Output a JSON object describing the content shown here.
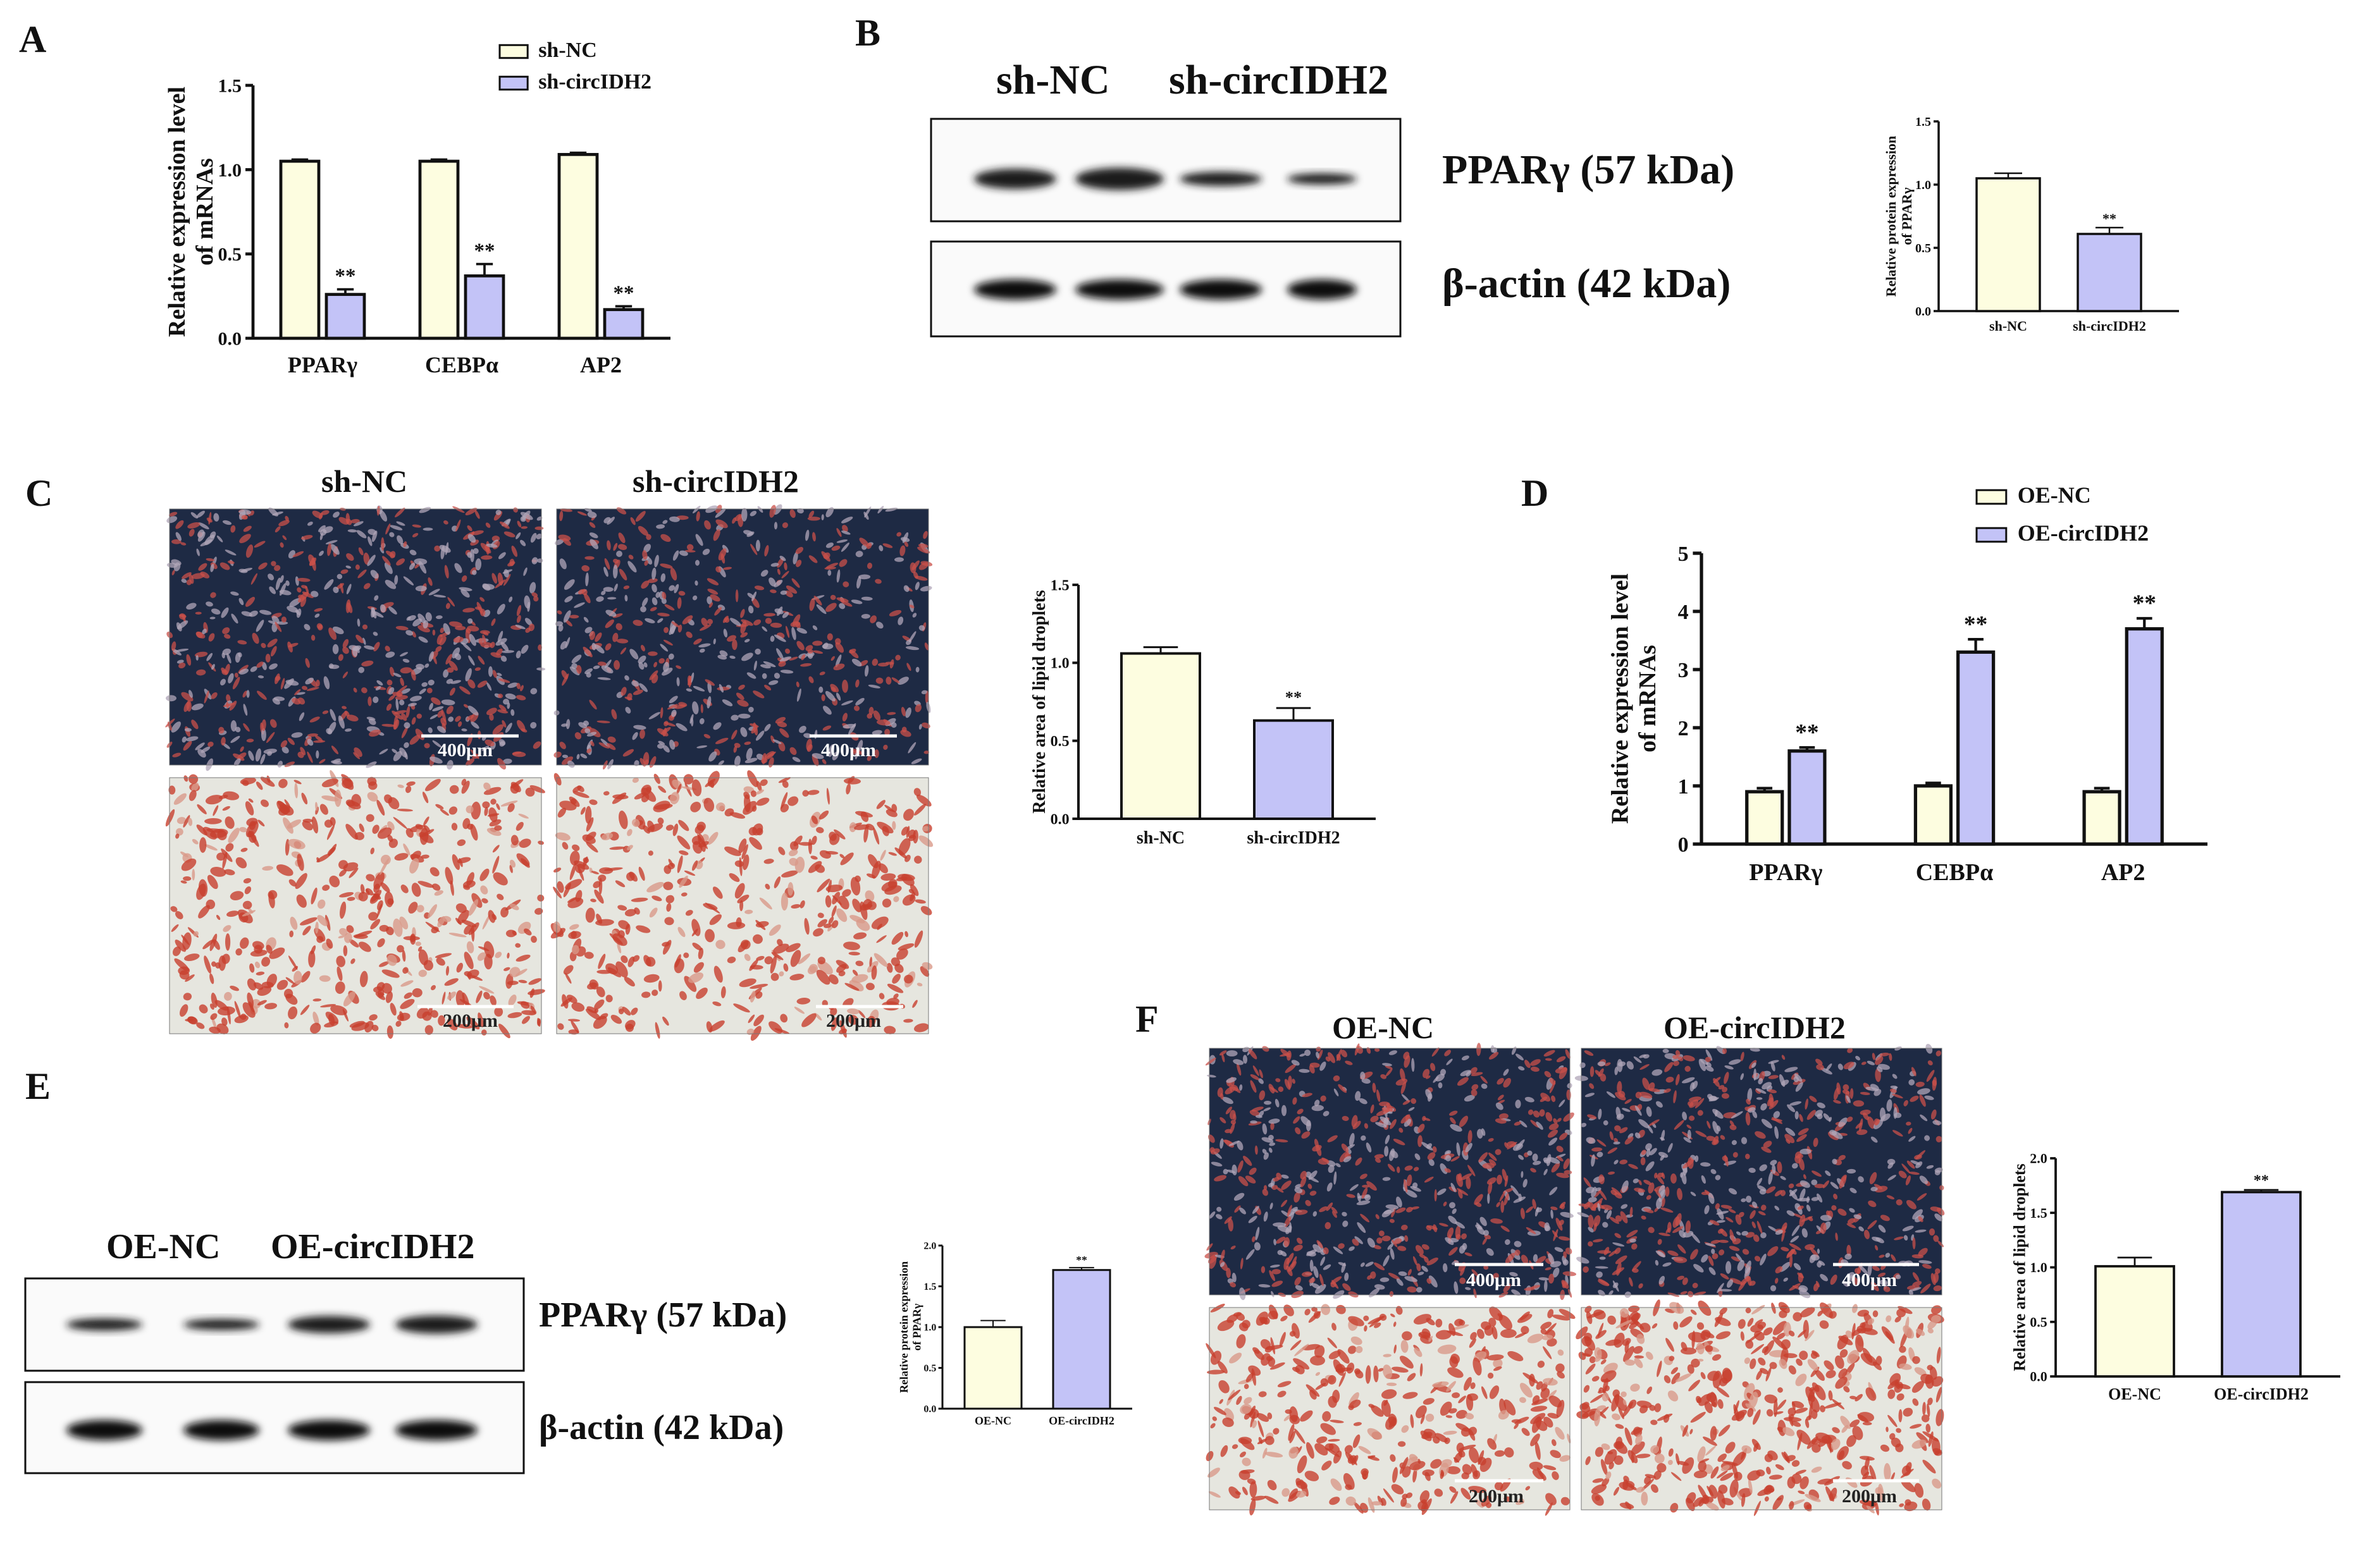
{
  "panels": {
    "A": {
      "letter": "A"
    },
    "B": {
      "letter": "B",
      "lane_header_1": "sh-NC",
      "lane_header_2": "sh-circIDH2",
      "band_label_1": "PPARγ (57 kDa)",
      "band_label_2": "β-actin (42 kDa)"
    },
    "C": {
      "letter": "C",
      "col_header_1": "sh-NC",
      "col_header_2": "sh-circIDH2",
      "scale_top": "400μm",
      "scale_bottom": "200μm"
    },
    "D": {
      "letter": "D"
    },
    "E": {
      "letter": "E",
      "lane_header_1": "OE-NC",
      "lane_header_2": "OE-circIDH2",
      "band_label_1": "PPARγ (57 kDa)",
      "band_label_2": "β-actin (42 kDa)"
    },
    "F": {
      "letter": "F",
      "col_header_1": "OE-NC",
      "col_header_2": "OE-circIDH2",
      "scale_top": "400μm",
      "scale_bottom": "200μm"
    }
  },
  "colors": {
    "control": "#fdfde0",
    "treated": "#c3c3f7",
    "stroke": "#111111",
    "stain_dark_bg": "#1e2a44",
    "stain_light_bg": "#e6e6df",
    "stain_red": "#c8402e"
  },
  "chart_data": [
    {
      "id": "A",
      "type": "bar",
      "categories": [
        "PPARγ",
        "CEBPα",
        "AP2"
      ],
      "series": [
        {
          "name": "sh-NC",
          "values": [
            1.05,
            1.05,
            1.09
          ],
          "errors": [
            0.01,
            0.01,
            0.01
          ]
        },
        {
          "name": "sh-circIDH2",
          "values": [
            0.26,
            0.37,
            0.17
          ],
          "errors": [
            0.03,
            0.07,
            0.02
          ]
        }
      ],
      "annotations": [
        "**",
        "**",
        "**"
      ],
      "ylabel": "Relative expression level\nof mRNAs",
      "ylim": [
        0,
        1.5
      ],
      "yticks": [
        "0.0",
        "0.5",
        "1.0",
        "1.5"
      ],
      "legend": "top-right"
    },
    {
      "id": "B",
      "type": "bar",
      "categories": [
        "sh-NC",
        "sh-circIDH2"
      ],
      "values": [
        1.05,
        0.61
      ],
      "errors": [
        0.04,
        0.05
      ],
      "annotations": [
        "",
        "**"
      ],
      "ylabel": "Relative protein expression\nof PPARγ",
      "ylim": [
        0,
        1.5
      ],
      "yticks": [
        "0.0",
        "0.5",
        "1.0",
        "1.5"
      ]
    },
    {
      "id": "C",
      "type": "bar",
      "categories": [
        "sh-NC",
        "sh-circIDH2"
      ],
      "values": [
        1.06,
        0.63
      ],
      "errors": [
        0.04,
        0.08
      ],
      "annotations": [
        "",
        "**"
      ],
      "ylabel": "Relative area of lipid droplets",
      "ylim": [
        0,
        1.5
      ],
      "yticks": [
        "0.0",
        "0.5",
        "1.0",
        "1.5"
      ]
    },
    {
      "id": "D",
      "type": "bar",
      "categories": [
        "PPARγ",
        "CEBPα",
        "AP2"
      ],
      "series": [
        {
          "name": "OE-NC",
          "values": [
            0.9,
            1.0,
            0.9
          ],
          "errors": [
            0.06,
            0.05,
            0.06
          ]
        },
        {
          "name": "OE-circIDH2",
          "values": [
            1.6,
            3.3,
            3.7
          ],
          "errors": [
            0.06,
            0.22,
            0.18
          ]
        }
      ],
      "annotations": [
        "**",
        "**",
        "**"
      ],
      "ylabel": "Relative expression level\nof mRNAs",
      "ylim": [
        0,
        5
      ],
      "yticks": [
        "0",
        "1",
        "2",
        "3",
        "4",
        "5"
      ],
      "legend": "top-left"
    },
    {
      "id": "E",
      "type": "bar",
      "categories": [
        "OE-NC",
        "OE-circIDH2"
      ],
      "values": [
        1.0,
        1.7
      ],
      "errors": [
        0.08,
        0.03
      ],
      "annotations": [
        "",
        "**"
      ],
      "ylabel": "Relative protein expression\nof PPARγ",
      "ylim": [
        0,
        2.0
      ],
      "yticks": [
        "0.0",
        "0.5",
        "1.0",
        "1.5",
        "2.0"
      ]
    },
    {
      "id": "F",
      "type": "bar",
      "categories": [
        "OE-NC",
        "OE-circIDH2"
      ],
      "values": [
        1.01,
        1.69
      ],
      "errors": [
        0.08,
        0.02
      ],
      "annotations": [
        "",
        "**"
      ],
      "ylabel": "Relative area of lipid droplets",
      "ylim": [
        0,
        2.0
      ],
      "yticks": [
        "0.0",
        "0.5",
        "1.0",
        "1.5",
        "2.0"
      ]
    }
  ]
}
